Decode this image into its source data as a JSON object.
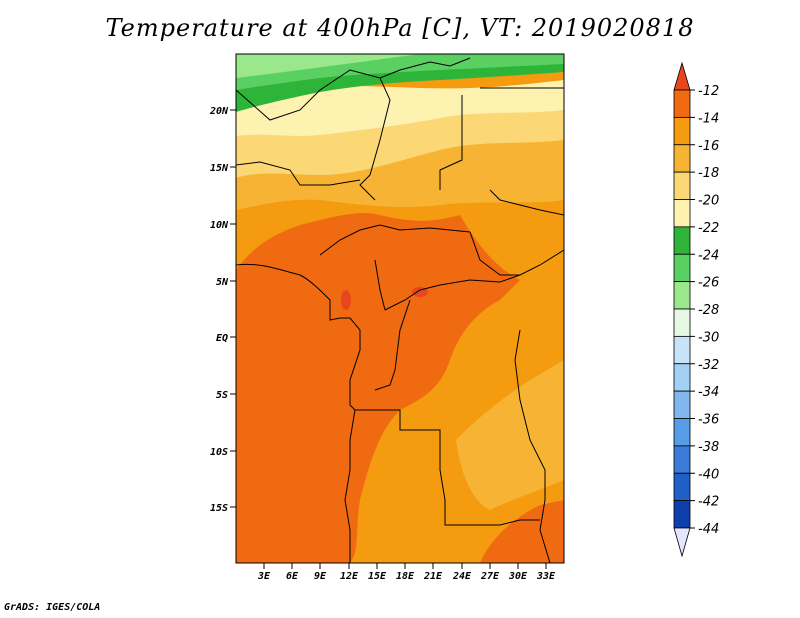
{
  "title": "Temperature at 400hPa [C], VT: 2019020818",
  "credit": "GrADS: IGES/COLA",
  "map": {
    "lat_ticks": [
      "20N",
      "15N",
      "10N",
      "5N",
      "EQ",
      "5S",
      "10S",
      "15S"
    ],
    "lon_ticks": [
      "3E",
      "6E",
      "9E",
      "12E",
      "15E",
      "18E",
      "21E",
      "24E",
      "27E",
      "30E",
      "33E"
    ]
  },
  "colorbar": {
    "levels": [
      "-12",
      "-14",
      "-16",
      "-18",
      "-20",
      "-22",
      "-24",
      "-26",
      "-28",
      "-30",
      "-32",
      "-34",
      "-36",
      "-38",
      "-40",
      "-42",
      "-44"
    ],
    "colors": [
      "#e8461e",
      "#f06a12",
      "#f59b0f",
      "#f7b434",
      "#fbd775",
      "#fef2b1",
      "#2fb43a",
      "#59d061",
      "#9be78b",
      "#e6f8e4",
      "#c6e3f8",
      "#a3d1f6",
      "#7fb7ee",
      "#579ce6",
      "#3b7cda",
      "#1f5fc8",
      "#0d3fad",
      "#0a1e6e",
      "#e4e6ff"
    ]
  }
}
